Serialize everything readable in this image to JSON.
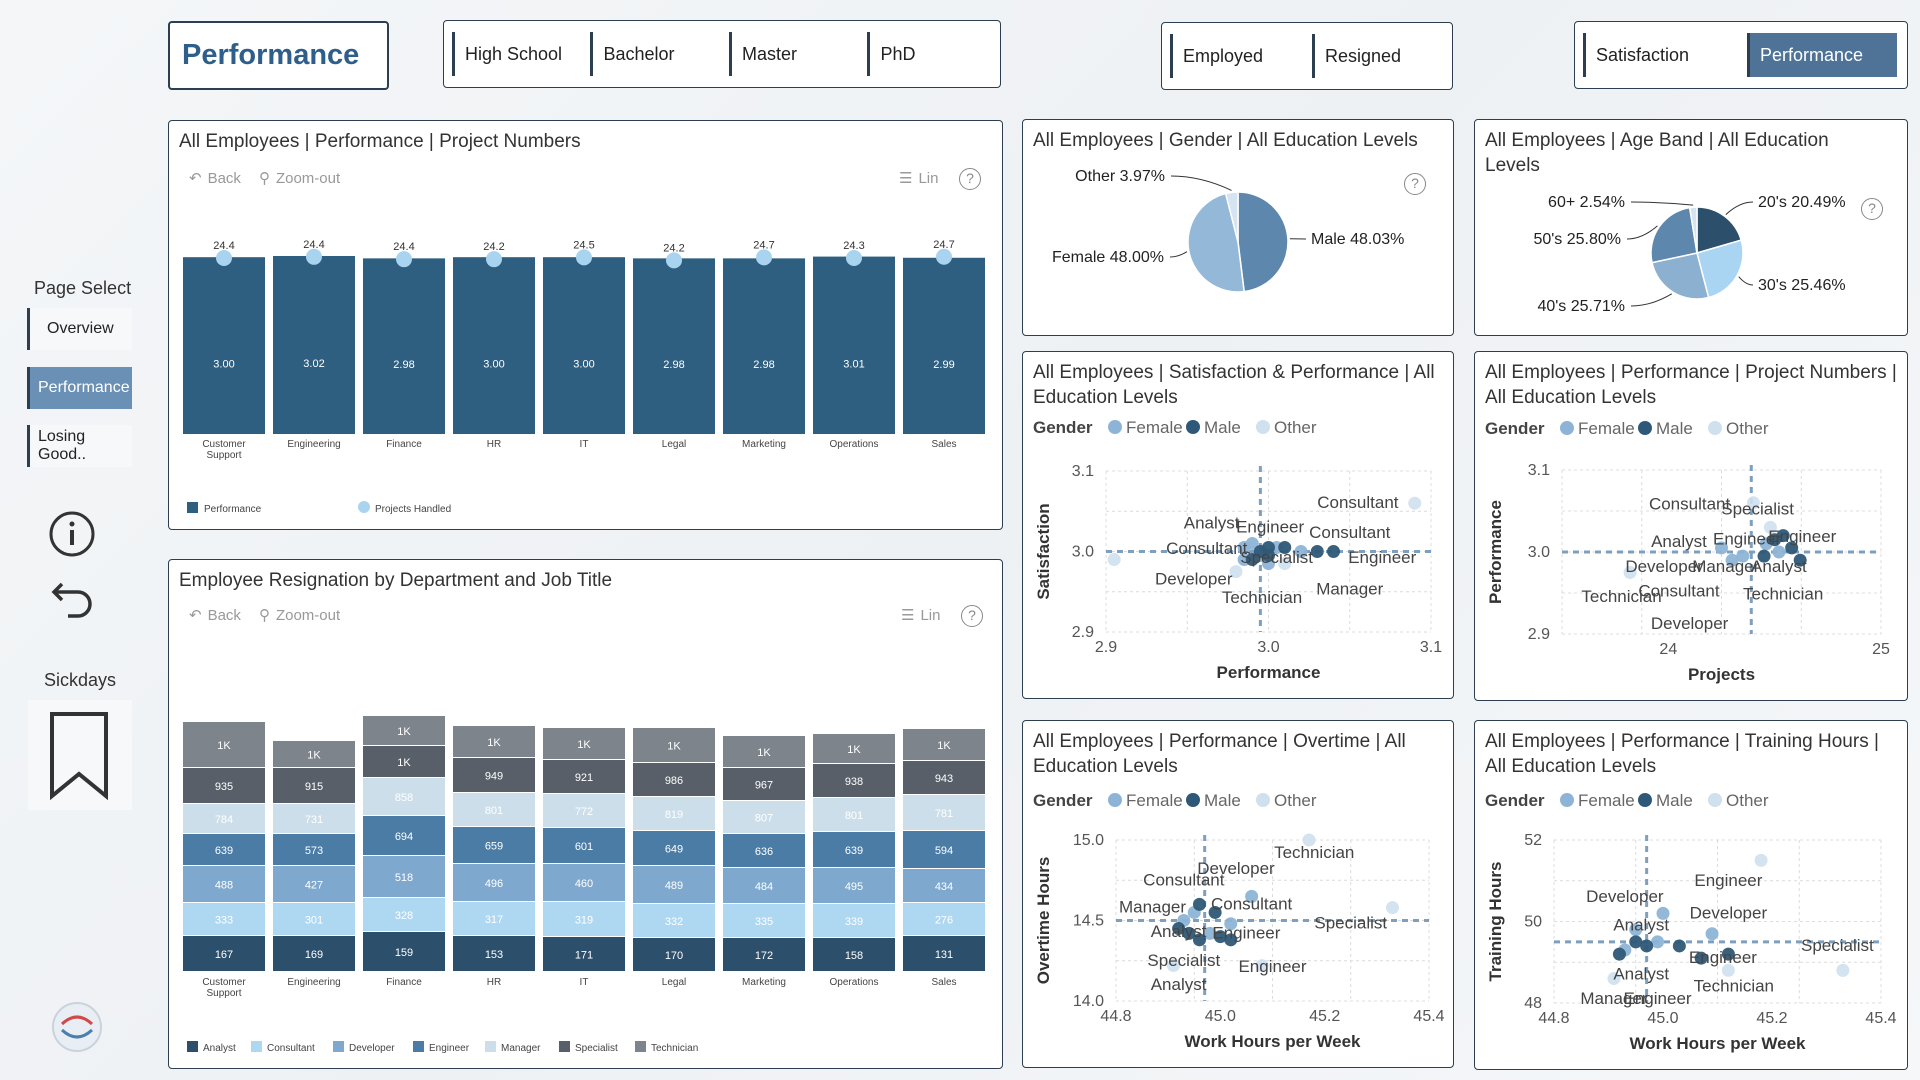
{
  "header": {
    "title": "Performance"
  },
  "education_slicer": [
    "High School",
    "Bachelor",
    "Master",
    "PhD"
  ],
  "status_slicer": [
    "Employed",
    "Resigned"
  ],
  "view_slicer": {
    "items": [
      "Satisfaction",
      "Performance"
    ],
    "selected": "Performance"
  },
  "nav": {
    "heading": "Page Select",
    "items": [
      "Overview",
      "Performance",
      "Losing Good.."
    ],
    "selected": "Performance",
    "sickdays_label": "Sickdays",
    "info_icon": "info-icon",
    "back_icon": "undo-icon",
    "bookmark_icon": "bookmark-icon"
  },
  "toolbar": {
    "back": "Back",
    "zoom_out": "Zoom-out",
    "lin": "Lin",
    "help": "?"
  },
  "colors": {
    "bar": "#2e5e80",
    "marker": "#a9d4f0",
    "accent": "#4e7397",
    "female": "#8db4d6",
    "male": "#2e5877",
    "other": "#cfe0ee"
  },
  "cards": {
    "perf_projects": {
      "title": "All Employees | Performance | Project Numbers",
      "chart_data": {
        "type": "bar",
        "categories": [
          "Customer Support",
          "Engineering",
          "Finance",
          "HR",
          "IT",
          "Legal",
          "Marketing",
          "Operations",
          "Sales"
        ],
        "series": [
          {
            "name": "Performance",
            "values": [
              3.0,
              3.02,
              2.98,
              3.0,
              3.0,
              2.98,
              2.98,
              3.01,
              2.99
            ]
          },
          {
            "name": "Projects Handled",
            "values": [
              24.4,
              24.4,
              24.4,
              24.2,
              24.5,
              24.2,
              24.7,
              24.3,
              24.7
            ]
          }
        ],
        "legend": [
          "Performance",
          "Projects Handled"
        ]
      }
    },
    "resignation": {
      "title": "Employee Resignation by Department and Job Title",
      "chart_data": {
        "type": "bar",
        "stacked": true,
        "categories": [
          "Customer Support",
          "Engineering",
          "Finance",
          "HR",
          "IT",
          "Legal",
          "Marketing",
          "Operations",
          "Sales"
        ],
        "series": [
          {
            "name": "Analyst",
            "values": [
              167,
              169,
              159,
              153,
              171,
              170,
              172,
              158,
              131
            ]
          },
          {
            "name": "Consultant",
            "values": [
              333,
              301,
              328,
              317,
              319,
              332,
              335,
              339,
              276
            ]
          },
          {
            "name": "Developer",
            "values": [
              488,
              427,
              518,
              496,
              460,
              489,
              484,
              495,
              434
            ]
          },
          {
            "name": "Engineer",
            "values": [
              639,
              573,
              694,
              659,
              601,
              649,
              636,
              639,
              594
            ]
          },
          {
            "name": "Manager",
            "values": [
              784,
              731,
              858,
              801,
              772,
              819,
              807,
              801,
              781
            ]
          },
          {
            "name": "Specialist",
            "values": [
              935,
              915,
              "1K",
              949,
              921,
              986,
              967,
              938,
              943
            ]
          },
          {
            "name": "Technician",
            "values": [
              "1K",
              "1K",
              "1K",
              "1K",
              "1K",
              "1K",
              "1K",
              "1K",
              "1K"
            ]
          }
        ],
        "legend": [
          "Analyst",
          "Consultant",
          "Developer",
          "Engineer",
          "Manager",
          "Specialist",
          "Technician"
        ]
      }
    },
    "gender_pie": {
      "title": "All Employees | Gender | All Education Levels",
      "chart_data": {
        "type": "pie",
        "slices": [
          {
            "label": "Male",
            "value": 48.03,
            "text": "Male 48.03%"
          },
          {
            "label": "Female",
            "value": 48.0,
            "text": "Female 48.00%"
          },
          {
            "label": "Other",
            "value": 3.97,
            "text": "Other 3.97%"
          }
        ]
      }
    },
    "age_pie": {
      "title": "All Employees | Age Band | All Education Levels",
      "chart_data": {
        "type": "pie",
        "slices": [
          {
            "label": "20's",
            "value": 20.49,
            "text": "20's 20.49%"
          },
          {
            "label": "30's",
            "value": 25.46,
            "text": "30's 25.46%"
          },
          {
            "label": "40's",
            "value": 25.71,
            "text": "40's 25.71%"
          },
          {
            "label": "50's",
            "value": 25.8,
            "text": "50's 25.80%"
          },
          {
            "label": "60+",
            "value": 2.54,
            "text": "60+ 2.54%"
          }
        ]
      }
    },
    "sat_perf": {
      "title": "All Employees | Satisfaction & Performance | All Education Levels",
      "legend_title": "Gender",
      "legend": [
        "Female",
        "Male",
        "Other"
      ],
      "chart_data": {
        "type": "scatter",
        "xlabel": "Performance",
        "ylabel": "Satisfaction",
        "xlim": [
          2.9,
          3.1
        ],
        "ylim": [
          2.9,
          3.1
        ],
        "xticks": [
          "2.9",
          "3.0",
          "3.1"
        ],
        "yticks": [
          "3.1",
          "3.0",
          "2.9"
        ],
        "ref_x": 2.995,
        "ref_y": 3.0,
        "points": [
          {
            "x": 3.09,
            "y": 3.06,
            "g": "Other"
          },
          {
            "x": 2.905,
            "y": 2.99,
            "g": "Other"
          },
          {
            "x": 2.98,
            "y": 2.975,
            "g": "Other"
          },
          {
            "x": 3.01,
            "y": 2.985,
            "g": "Other"
          },
          {
            "x": 2.985,
            "y": 3.005,
            "g": "Female"
          },
          {
            "x": 2.99,
            "y": 3.01,
            "g": "Female"
          },
          {
            "x": 2.985,
            "y": 2.99,
            "g": "Female"
          },
          {
            "x": 2.995,
            "y": 2.995,
            "g": "Female"
          },
          {
            "x": 3.005,
            "y": 3.005,
            "g": "Female"
          },
          {
            "x": 3.0,
            "y": 2.985,
            "g": "Female"
          },
          {
            "x": 3.02,
            "y": 3.0,
            "g": "Female"
          },
          {
            "x": 3.04,
            "y": 3.0,
            "g": "Male"
          },
          {
            "x": 3.03,
            "y": 3.0,
            "g": "Male"
          },
          {
            "x": 3.01,
            "y": 3.005,
            "g": "Male"
          },
          {
            "x": 2.995,
            "y": 3.0,
            "g": "Male"
          },
          {
            "x": 2.99,
            "y": 2.99,
            "g": "Male"
          },
          {
            "x": 3.0,
            "y": 2.995,
            "g": "Male"
          },
          {
            "x": 3.0,
            "y": 3.005,
            "g": "Male"
          }
        ],
        "labels": [
          {
            "text": "Consultant",
            "x": 3.055,
            "y": 3.06
          },
          {
            "text": "Analyst",
            "x": 2.965,
            "y": 3.035
          },
          {
            "text": "Engineer",
            "x": 3.001,
            "y": 3.03
          },
          {
            "text": "Consultant",
            "x": 3.05,
            "y": 3.023
          },
          {
            "text": "Consultant",
            "x": 2.962,
            "y": 3.003
          },
          {
            "text": "Specialist",
            "x": 3.005,
            "y": 2.992
          },
          {
            "text": "Engineer",
            "x": 3.07,
            "y": 2.992
          },
          {
            "text": "Developer",
            "x": 2.954,
            "y": 2.965
          },
          {
            "text": "Manager",
            "x": 3.05,
            "y": 2.953
          },
          {
            "text": "Technician",
            "x": 2.996,
            "y": 2.942
          }
        ]
      }
    },
    "perf_projects_scatter": {
      "title": "All Employees | Performance | Project Numbers | All Education Levels",
      "legend_title": "Gender",
      "legend": [
        "Female",
        "Male",
        "Other"
      ],
      "chart_data": {
        "type": "scatter",
        "xlabel": "Projects",
        "ylabel": "Performance",
        "xlim": [
          23.5,
          25.0
        ],
        "ylim": [
          2.9,
          3.1
        ],
        "xticks": [
          "24",
          "25"
        ],
        "yticks": [
          "3.1",
          "3.0",
          "2.9"
        ],
        "ref_x": 24.39,
        "ref_y": 3.0,
        "points": [
          {
            "x": 23.82,
            "y": 2.975,
            "g": "Other"
          },
          {
            "x": 24.48,
            "y": 3.03,
            "g": "Other"
          },
          {
            "x": 24.4,
            "y": 3.06,
            "g": "Other"
          },
          {
            "x": 24.52,
            "y": 3.0,
            "g": "Female"
          },
          {
            "x": 24.46,
            "y": 3.01,
            "g": "Female"
          },
          {
            "x": 24.35,
            "y": 2.995,
            "g": "Female"
          },
          {
            "x": 24.3,
            "y": 2.99,
            "g": "Female"
          },
          {
            "x": 24.25,
            "y": 3.005,
            "g": "Female"
          },
          {
            "x": 24.54,
            "y": 3.02,
            "g": "Male"
          },
          {
            "x": 24.58,
            "y": 3.005,
            "g": "Male"
          },
          {
            "x": 24.62,
            "y": 2.99,
            "g": "Male"
          },
          {
            "x": 24.5,
            "y": 3.015,
            "g": "Male"
          },
          {
            "x": 24.45,
            "y": 2.995,
            "g": "Male"
          }
        ],
        "labels": [
          {
            "text": "Consultant",
            "x": 24.1,
            "y": 3.058
          },
          {
            "text": "Specialist",
            "x": 24.42,
            "y": 3.052
          },
          {
            "text": "Engineer",
            "x": 24.63,
            "y": 3.018
          },
          {
            "text": "Analyst",
            "x": 24.05,
            "y": 3.012
          },
          {
            "text": "Engineer",
            "x": 24.37,
            "y": 3.015
          },
          {
            "text": "Developer",
            "x": 23.98,
            "y": 2.982
          },
          {
            "text": "Manager",
            "x": 24.27,
            "y": 2.982
          },
          {
            "text": "Analyst",
            "x": 24.52,
            "y": 2.982
          },
          {
            "text": "Technician",
            "x": 23.78,
            "y": 2.945
          },
          {
            "text": "Consultant",
            "x": 24.05,
            "y": 2.952
          },
          {
            "text": "Technician",
            "x": 24.54,
            "y": 2.948
          },
          {
            "text": "Developer",
            "x": 24.1,
            "y": 2.912
          }
        ]
      }
    },
    "overtime": {
      "title": "All Employees | Performance | Overtime | All Education Levels",
      "legend_title": "Gender",
      "legend": [
        "Female",
        "Male",
        "Other"
      ],
      "chart_data": {
        "type": "scatter",
        "xlabel": "Work Hours per Week",
        "ylabel": "Overtime Hours",
        "xlim": [
          44.8,
          45.4
        ],
        "ylim": [
          14.0,
          15.0
        ],
        "xticks": [
          "44.8",
          "45.0",
          "45.2",
          "45.4"
        ],
        "yticks": [
          "15.0",
          "14.5",
          "14.0"
        ],
        "ref_x": 44.97,
        "ref_y": 14.5,
        "points": [
          {
            "x": 45.17,
            "y": 15.0,
            "g": "Other"
          },
          {
            "x": 45.33,
            "y": 14.58,
            "g": "Other"
          },
          {
            "x": 44.91,
            "y": 14.22,
            "g": "Other"
          },
          {
            "x": 45.08,
            "y": 14.22,
            "g": "Other"
          },
          {
            "x": 45.06,
            "y": 14.65,
            "g": "Female"
          },
          {
            "x": 44.95,
            "y": 14.55,
            "g": "Female"
          },
          {
            "x": 44.93,
            "y": 14.5,
            "g": "Female"
          },
          {
            "x": 45.02,
            "y": 14.48,
            "g": "Female"
          },
          {
            "x": 44.98,
            "y": 14.42,
            "g": "Female"
          },
          {
            "x": 44.96,
            "y": 14.6,
            "g": "Male"
          },
          {
            "x": 44.99,
            "y": 14.55,
            "g": "Male"
          },
          {
            "x": 44.92,
            "y": 14.45,
            "g": "Male"
          },
          {
            "x": 44.94,
            "y": 14.42,
            "g": "Male"
          },
          {
            "x": 45.0,
            "y": 14.4,
            "g": "Male"
          },
          {
            "x": 45.02,
            "y": 14.38,
            "g": "Male"
          },
          {
            "x": 44.96,
            "y": 14.38,
            "g": "Male"
          }
        ],
        "labels": [
          {
            "text": "Technician",
            "x": 45.18,
            "y": 14.92
          },
          {
            "text": "Developer",
            "x": 45.03,
            "y": 14.82
          },
          {
            "text": "Consultant",
            "x": 44.93,
            "y": 14.75
          },
          {
            "text": "Manager",
            "x": 44.87,
            "y": 14.58
          },
          {
            "text": "Consultant",
            "x": 45.06,
            "y": 14.6
          },
          {
            "text": "Analyst",
            "x": 44.92,
            "y": 14.43
          },
          {
            "text": "Engineer",
            "x": 45.05,
            "y": 14.42
          },
          {
            "text": "Specialist",
            "x": 45.25,
            "y": 14.48
          },
          {
            "text": "Specialist",
            "x": 44.93,
            "y": 14.25
          },
          {
            "text": "Engineer",
            "x": 45.1,
            "y": 14.21
          },
          {
            "text": "Analyst",
            "x": 44.92,
            "y": 14.1
          }
        ]
      }
    },
    "training": {
      "title": "All Employees | Performance | Training Hours | All Education Levels",
      "legend_title": "Gender",
      "legend": [
        "Female",
        "Male",
        "Other"
      ],
      "chart_data": {
        "type": "scatter",
        "xlabel": "Work Hours per Week",
        "ylabel": "Training Hours",
        "xlim": [
          44.8,
          45.4
        ],
        "ylim": [
          48,
          52
        ],
        "xticks": [
          "44.8",
          "45.0",
          "45.2",
          "45.4"
        ],
        "yticks": [
          "52",
          "50",
          "48"
        ],
        "ref_x": 44.97,
        "ref_y": 49.5,
        "points": [
          {
            "x": 45.18,
            "y": 51.5,
            "g": "Other"
          },
          {
            "x": 45.33,
            "y": 48.8,
            "g": "Other"
          },
          {
            "x": 44.91,
            "y": 48.6,
            "g": "Other"
          },
          {
            "x": 45.12,
            "y": 48.8,
            "g": "Other"
          },
          {
            "x": 45.0,
            "y": 50.2,
            "g": "Female"
          },
          {
            "x": 44.95,
            "y": 49.8,
            "g": "Female"
          },
          {
            "x": 44.99,
            "y": 49.5,
            "g": "Female"
          },
          {
            "x": 44.93,
            "y": 49.3,
            "g": "Female"
          },
          {
            "x": 45.09,
            "y": 49.7,
            "g": "Female"
          },
          {
            "x": 44.92,
            "y": 49.2,
            "g": "Male"
          },
          {
            "x": 44.95,
            "y": 49.5,
            "g": "Male"
          },
          {
            "x": 44.97,
            "y": 49.4,
            "g": "Male"
          },
          {
            "x": 45.03,
            "y": 49.4,
            "g": "Male"
          },
          {
            "x": 45.07,
            "y": 49.1,
            "g": "Male"
          },
          {
            "x": 45.12,
            "y": 49.2,
            "g": "Male"
          }
        ],
        "labels": [
          {
            "text": "Engineer",
            "x": 45.12,
            "y": 51.0
          },
          {
            "text": "Developer",
            "x": 44.93,
            "y": 50.6
          },
          {
            "text": "Developer",
            "x": 45.12,
            "y": 50.2
          },
          {
            "text": "Analyst",
            "x": 44.96,
            "y": 49.9
          },
          {
            "text": "Specialist",
            "x": 45.32,
            "y": 49.4
          },
          {
            "text": "Engineer",
            "x": 45.11,
            "y": 49.1
          },
          {
            "text": "Analyst",
            "x": 44.96,
            "y": 48.7
          },
          {
            "text": "Technician",
            "x": 45.13,
            "y": 48.4
          },
          {
            "text": "Manager",
            "x": 44.91,
            "y": 48.1
          },
          {
            "text": "Engineer",
            "x": 44.99,
            "y": 48.1
          }
        ]
      }
    }
  }
}
